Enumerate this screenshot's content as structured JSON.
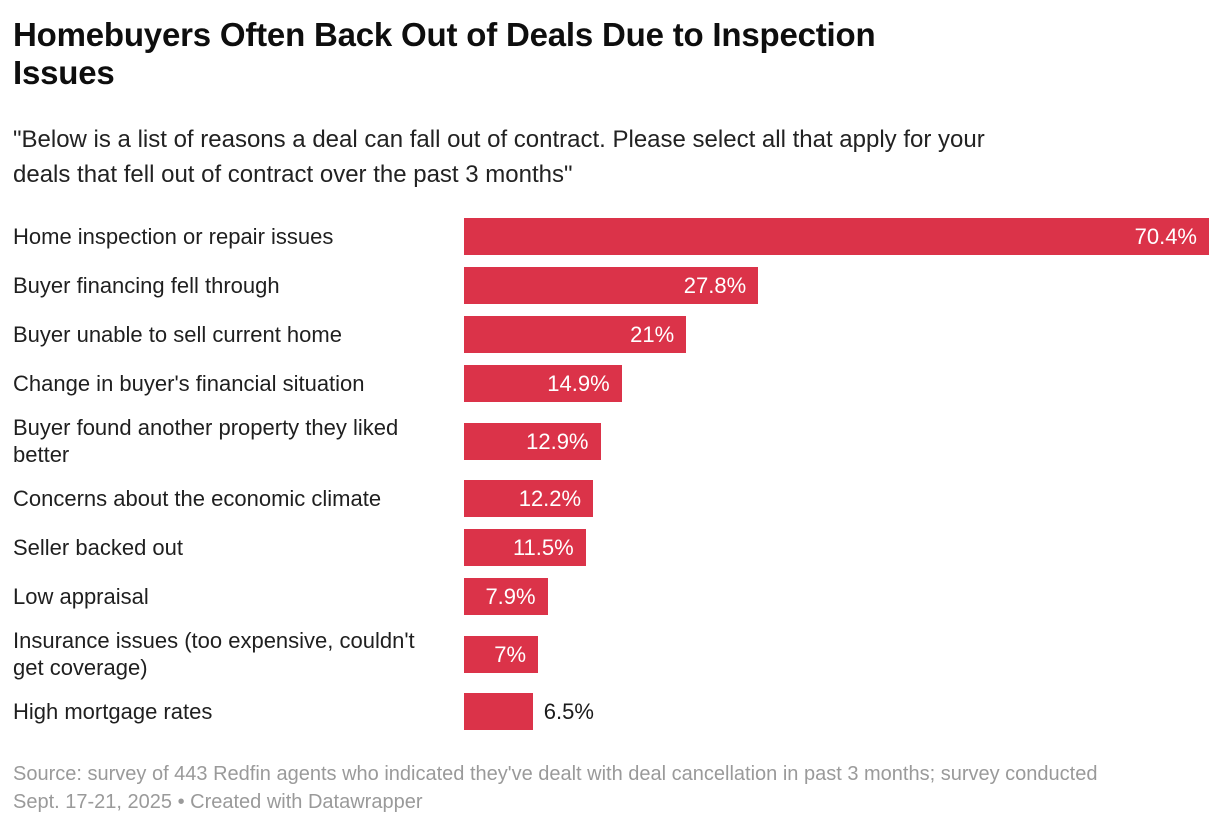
{
  "header": {
    "title": "Homebuyers Often Back Out of Deals Due to Inspection Issues",
    "title_lines": [
      "Homebuyers Often Back Out of Deals Due to Inspection",
      "Issues"
    ],
    "subtitle": "\"Below is a list of reasons a deal can fall out of contract. Please select all that apply for your deals that fell out of contract over the past 3 months\"",
    "subtitle_lines": [
      "\"Below is a list of reasons a deal can fall out of contract. Please select all that apply for your",
      "deals that fell out of contract over the past 3 months\""
    ]
  },
  "chart_data": {
    "type": "bar",
    "orientation": "horizontal",
    "title": "Homebuyers Often Back Out of Deals Due to Inspection Issues",
    "xlabel": "",
    "ylabel": "",
    "xlim": [
      0,
      70.4
    ],
    "grid": false,
    "legend": false,
    "bar_color": "#db3349",
    "value_label_color_inside": "#ffffff",
    "value_label_color_outside": "#1a1a1a",
    "categories": [
      "Home inspection or repair issues",
      "Buyer financing fell through",
      "Buyer unable to sell current home",
      "Change in buyer's financial situation",
      "Buyer found another property they liked better",
      "Concerns about the economic climate",
      "Seller backed out",
      "Low appraisal",
      "Insurance issues (too expensive, couldn't get coverage)",
      "High mortgage rates"
    ],
    "values": [
      70.4,
      27.8,
      21,
      14.9,
      12.9,
      12.2,
      11.5,
      7.9,
      7,
      6.5
    ],
    "value_labels": [
      "70.4%",
      "27.8%",
      "21%",
      "14.9%",
      "12.9%",
      "12.2%",
      "11.5%",
      "7.9%",
      "7%",
      "6.5%"
    ],
    "rows": [
      {
        "label": "Home inspection or repair issues",
        "value": 70.4,
        "display": "70.4%",
        "value_position": "inside"
      },
      {
        "label": "Buyer financing fell through",
        "value": 27.8,
        "display": "27.8%",
        "value_position": "inside"
      },
      {
        "label": "Buyer unable to sell current home",
        "value": 21,
        "display": "21%",
        "value_position": "inside"
      },
      {
        "label": "Change in buyer's financial situation",
        "value": 14.9,
        "display": "14.9%",
        "value_position": "inside"
      },
      {
        "label": "Buyer found another property they liked better",
        "label_lines": [
          "Buyer found another property they liked",
          "better"
        ],
        "value": 12.9,
        "display": "12.9%",
        "value_position": "inside"
      },
      {
        "label": "Concerns about the economic climate",
        "value": 12.2,
        "display": "12.2%",
        "value_position": "inside"
      },
      {
        "label": "Seller backed out",
        "value": 11.5,
        "display": "11.5%",
        "value_position": "inside"
      },
      {
        "label": "Low appraisal",
        "value": 7.9,
        "display": "7.9%",
        "value_position": "inside"
      },
      {
        "label": "Insurance issues (too expensive, couldn't get coverage)",
        "label_lines": [
          "Insurance issues (too expensive, couldn't",
          "get coverage)"
        ],
        "value": 7,
        "display": "7%",
        "value_position": "inside"
      },
      {
        "label": "High mortgage rates",
        "value": 6.5,
        "display": "6.5%",
        "value_position": "outside"
      }
    ]
  },
  "footer": {
    "line1": "Source: survey of 443 Redfin agents who indicated they've dealt with deal cancellation in past 3 months; survey conducted",
    "line2_prefix": "Sept. 17-21, 2025 • ",
    "attribution": "Created with Datawrapper"
  }
}
